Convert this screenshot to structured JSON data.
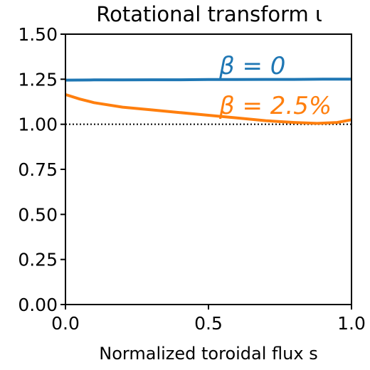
{
  "chart_data": {
    "type": "line",
    "title": "Rotational transform ι",
    "xlabel": "Normalized toroidal flux s",
    "ylabel": "",
    "xlim": [
      0.0,
      1.0
    ],
    "ylim": [
      0.0,
      1.5
    ],
    "x_ticks": [
      "0.0",
      "0.5",
      "1.0"
    ],
    "y_ticks": [
      "0.00",
      "0.25",
      "0.50",
      "0.75",
      "1.00",
      "1.25",
      "1.50"
    ],
    "x_tick_values": [
      0.0,
      0.5,
      1.0
    ],
    "y_tick_values": [
      0.0,
      0.25,
      0.5,
      0.75,
      1.0,
      1.25,
      1.5
    ],
    "grid": false,
    "reference_line": {
      "y": 1.0,
      "style": "dotted",
      "color": "#000000"
    },
    "series": [
      {
        "name": "β = 0",
        "color": "#1f77b4",
        "x": [
          0.0,
          0.1,
          0.2,
          0.3,
          0.4,
          0.5,
          0.6,
          0.7,
          0.8,
          0.9,
          1.0
        ],
        "y": [
          1.245,
          1.246,
          1.246,
          1.247,
          1.247,
          1.248,
          1.248,
          1.249,
          1.249,
          1.25,
          1.25
        ]
      },
      {
        "name": "β = 2.5%",
        "color": "#ff7f0e",
        "x": [
          0.0,
          0.05,
          0.1,
          0.2,
          0.3,
          0.4,
          0.5,
          0.6,
          0.7,
          0.8,
          0.88,
          0.95,
          1.0
        ],
        "y": [
          1.165,
          1.14,
          1.12,
          1.095,
          1.08,
          1.065,
          1.05,
          1.035,
          1.02,
          1.01,
          1.005,
          1.01,
          1.025
        ]
      }
    ]
  }
}
